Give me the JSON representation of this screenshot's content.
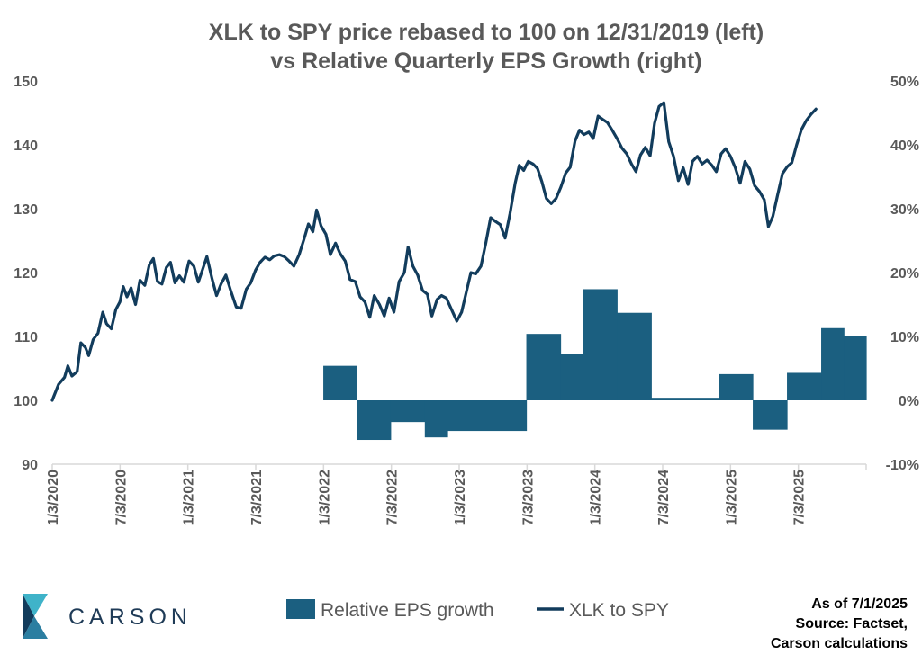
{
  "chart_data": {
    "type": "line",
    "title": [
      "XLK to SPY price rebased to 100 on 12/31/2019 (left)",
      "vs Relative Quarterly EPS Growth (right)"
    ],
    "x_ticks": [
      "1/3/2020",
      "7/3/2020",
      "1/3/2021",
      "7/3/2021",
      "1/3/2022",
      "7/3/2022",
      "1/3/2023",
      "7/3/2023",
      "1/3/2024",
      "7/3/2024",
      "1/3/2025",
      "7/3/2025"
    ],
    "y_left": {
      "ticks": [
        "90",
        "100",
        "110",
        "120",
        "130",
        "140",
        "150"
      ],
      "range": [
        90,
        150
      ]
    },
    "y_right": {
      "ticks": [
        "-10%",
        "0%",
        "10%",
        "20%",
        "30%",
        "40%",
        "50%"
      ],
      "range": [
        -10,
        50
      ]
    },
    "x_range": [
      "2020-01-03",
      "2025-12-31"
    ],
    "series": [
      {
        "name": "Relative EPS growth",
        "kind": "area-step",
        "axis": "right",
        "color": "#1b5f80",
        "points": [
          [
            "2022-01-01",
            5.4
          ],
          [
            "2022-04-01",
            -6.2
          ],
          [
            "2022-07-01",
            -3.4
          ],
          [
            "2022-10-01",
            -5.8
          ],
          [
            "2022-12-01",
            -4.8
          ],
          [
            "2023-07-01",
            10.4
          ],
          [
            "2023-10-01",
            7.3
          ],
          [
            "2023-12-01",
            17.4
          ],
          [
            "2024-03-01",
            13.7
          ],
          [
            "2024-06-01",
            0.4
          ],
          [
            "2024-12-01",
            4.1
          ],
          [
            "2025-03-01",
            -4.6
          ],
          [
            "2025-06-01",
            4.3
          ],
          [
            "2025-09-01",
            11.3
          ],
          [
            "2025-11-01",
            10.0
          ],
          [
            "2026-01-01",
            4.4
          ],
          [
            "2026-06-01",
            4.4
          ]
        ]
      },
      {
        "name": "XLK to SPY",
        "kind": "line",
        "axis": "left",
        "color": "#123c5c",
        "points": [
          [
            "2020-01-03",
            100.0
          ],
          [
            "2020-01-20",
            102.5
          ],
          [
            "2020-02-05",
            103.6
          ],
          [
            "2020-02-14",
            105.4
          ],
          [
            "2020-02-25",
            103.8
          ],
          [
            "2020-03-10",
            104.5
          ],
          [
            "2020-03-20",
            109.0
          ],
          [
            "2020-04-01",
            108.3
          ],
          [
            "2020-04-10",
            107.0
          ],
          [
            "2020-04-22",
            109.5
          ],
          [
            "2020-05-05",
            110.5
          ],
          [
            "2020-05-18",
            113.8
          ],
          [
            "2020-05-28",
            112.0
          ],
          [
            "2020-06-10",
            111.2
          ],
          [
            "2020-06-22",
            114.2
          ],
          [
            "2020-07-03",
            115.4
          ],
          [
            "2020-07-12",
            117.8
          ],
          [
            "2020-07-22",
            116.2
          ],
          [
            "2020-08-02",
            117.6
          ],
          [
            "2020-08-14",
            115.0
          ],
          [
            "2020-08-26",
            118.8
          ],
          [
            "2020-09-08",
            118.0
          ],
          [
            "2020-09-20",
            121.2
          ],
          [
            "2020-10-01",
            122.2
          ],
          [
            "2020-10-12",
            118.6
          ],
          [
            "2020-10-24",
            118.2
          ],
          [
            "2020-11-05",
            120.8
          ],
          [
            "2020-11-16",
            121.6
          ],
          [
            "2020-11-28",
            118.4
          ],
          [
            "2020-12-10",
            119.5
          ],
          [
            "2020-12-22",
            118.5
          ],
          [
            "2021-01-05",
            121.8
          ],
          [
            "2021-01-18",
            121.0
          ],
          [
            "2021-01-30",
            118.5
          ],
          [
            "2021-02-10",
            120.4
          ],
          [
            "2021-02-22",
            122.5
          ],
          [
            "2021-03-08",
            119.0
          ],
          [
            "2021-03-20",
            116.4
          ],
          [
            "2021-04-01",
            118.2
          ],
          [
            "2021-04-14",
            119.6
          ],
          [
            "2021-04-28",
            117.0
          ],
          [
            "2021-05-12",
            114.6
          ],
          [
            "2021-05-25",
            114.4
          ],
          [
            "2021-06-08",
            117.4
          ],
          [
            "2021-06-20",
            118.4
          ],
          [
            "2021-07-03",
            120.4
          ],
          [
            "2021-07-15",
            121.6
          ],
          [
            "2021-07-28",
            122.4
          ],
          [
            "2021-08-10",
            122.0
          ],
          [
            "2021-08-22",
            122.6
          ],
          [
            "2021-09-05",
            122.8
          ],
          [
            "2021-09-18",
            122.5
          ],
          [
            "2021-10-01",
            121.8
          ],
          [
            "2021-10-14",
            121.0
          ],
          [
            "2021-10-28",
            122.8
          ],
          [
            "2021-11-10",
            125.2
          ],
          [
            "2021-11-22",
            127.6
          ],
          [
            "2021-12-04",
            126.4
          ],
          [
            "2021-12-14",
            129.8
          ],
          [
            "2021-12-26",
            127.3
          ],
          [
            "2022-01-08",
            126.0
          ],
          [
            "2022-01-20",
            122.8
          ],
          [
            "2022-02-03",
            124.6
          ],
          [
            "2022-02-15",
            123.0
          ],
          [
            "2022-03-01",
            121.8
          ],
          [
            "2022-03-14",
            118.9
          ],
          [
            "2022-03-28",
            118.6
          ],
          [
            "2022-04-10",
            116.2
          ],
          [
            "2022-04-23",
            115.4
          ],
          [
            "2022-05-06",
            113.0
          ],
          [
            "2022-05-18",
            116.4
          ],
          [
            "2022-06-01",
            115.0
          ],
          [
            "2022-06-14",
            113.2
          ],
          [
            "2022-06-27",
            116.0
          ],
          [
            "2022-07-10",
            113.8
          ],
          [
            "2022-07-24",
            118.6
          ],
          [
            "2022-08-07",
            120.0
          ],
          [
            "2022-08-17",
            124.0
          ],
          [
            "2022-08-30",
            121.0
          ],
          [
            "2022-09-12",
            119.6
          ],
          [
            "2022-09-25",
            117.2
          ],
          [
            "2022-10-08",
            116.6
          ],
          [
            "2022-10-20",
            113.2
          ],
          [
            "2022-11-03",
            115.8
          ],
          [
            "2022-11-15",
            116.4
          ],
          [
            "2022-11-28",
            116.0
          ],
          [
            "2022-12-12",
            114.2
          ],
          [
            "2022-12-26",
            112.4
          ],
          [
            "2023-01-08",
            113.8
          ],
          [
            "2023-01-20",
            116.8
          ],
          [
            "2023-02-02",
            120.0
          ],
          [
            "2023-02-15",
            119.8
          ],
          [
            "2023-03-01",
            121.0
          ],
          [
            "2023-03-14",
            124.6
          ],
          [
            "2023-03-27",
            128.6
          ],
          [
            "2023-04-09",
            128.0
          ],
          [
            "2023-04-22",
            127.5
          ],
          [
            "2023-05-05",
            125.4
          ],
          [
            "2023-05-18",
            129.2
          ],
          [
            "2023-06-01",
            134.0
          ],
          [
            "2023-06-12",
            136.8
          ],
          [
            "2023-06-24",
            136.0
          ],
          [
            "2023-07-06",
            137.4
          ],
          [
            "2023-07-19",
            137.0
          ],
          [
            "2023-07-31",
            136.3
          ],
          [
            "2023-08-12",
            134.2
          ],
          [
            "2023-08-24",
            131.6
          ],
          [
            "2023-09-06",
            130.8
          ],
          [
            "2023-09-19",
            131.6
          ],
          [
            "2023-10-02",
            133.4
          ],
          [
            "2023-10-15",
            135.6
          ],
          [
            "2023-10-27",
            136.5
          ],
          [
            "2023-11-09",
            140.6
          ],
          [
            "2023-11-21",
            142.3
          ],
          [
            "2023-12-03",
            141.6
          ],
          [
            "2023-12-16",
            142.0
          ],
          [
            "2023-12-28",
            141.0
          ],
          [
            "2024-01-10",
            144.5
          ],
          [
            "2024-01-22",
            144.0
          ],
          [
            "2024-02-04",
            143.5
          ],
          [
            "2024-02-16",
            142.4
          ],
          [
            "2024-03-01",
            141.0
          ],
          [
            "2024-03-14",
            139.5
          ],
          [
            "2024-03-27",
            138.6
          ],
          [
            "2024-04-09",
            137.0
          ],
          [
            "2024-04-21",
            135.8
          ],
          [
            "2024-05-03",
            138.4
          ],
          [
            "2024-05-16",
            139.6
          ],
          [
            "2024-05-29",
            138.3
          ],
          [
            "2024-06-10",
            143.4
          ],
          [
            "2024-06-22",
            146.0
          ],
          [
            "2024-07-05",
            146.6
          ],
          [
            "2024-07-18",
            140.5
          ],
          [
            "2024-07-31",
            138.2
          ],
          [
            "2024-08-13",
            134.4
          ],
          [
            "2024-08-26",
            136.4
          ],
          [
            "2024-09-08",
            133.8
          ],
          [
            "2024-09-20",
            137.4
          ],
          [
            "2024-10-03",
            138.2
          ],
          [
            "2024-10-16",
            137.0
          ],
          [
            "2024-10-29",
            137.6
          ],
          [
            "2024-11-11",
            136.8
          ],
          [
            "2024-11-23",
            135.8
          ],
          [
            "2024-12-06",
            138.6
          ],
          [
            "2024-12-18",
            139.4
          ],
          [
            "2024-12-31",
            138.2
          ],
          [
            "2025-01-13",
            136.4
          ],
          [
            "2025-01-26",
            134.0
          ],
          [
            "2025-02-08",
            137.4
          ],
          [
            "2025-02-21",
            136.2
          ],
          [
            "2025-03-06",
            133.6
          ],
          [
            "2025-03-19",
            132.7
          ],
          [
            "2025-04-01",
            131.4
          ],
          [
            "2025-04-12",
            127.2
          ],
          [
            "2025-04-24",
            128.8
          ],
          [
            "2025-05-07",
            132.2
          ],
          [
            "2025-05-20",
            135.5
          ],
          [
            "2025-06-02",
            136.6
          ],
          [
            "2025-06-14",
            137.2
          ],
          [
            "2025-06-27",
            140.0
          ],
          [
            "2025-07-10",
            142.4
          ],
          [
            "2025-07-23",
            143.8
          ],
          [
            "2025-08-05",
            144.8
          ],
          [
            "2025-08-18",
            145.6
          ]
        ]
      }
    ],
    "legend": {
      "placement": "bottom",
      "items": [
        "Relative EPS growth",
        "XLK to SPY"
      ]
    },
    "grid": false
  },
  "logo": {
    "text": "CARSON"
  },
  "footnote": [
    "As of 7/1/2025",
    "Source: Factset,",
    "Carson calculations"
  ],
  "colors": {
    "area": "#1b5f80",
    "line": "#123c5c",
    "axis_text": "#595959",
    "axis_line": "#d9d9d9"
  }
}
